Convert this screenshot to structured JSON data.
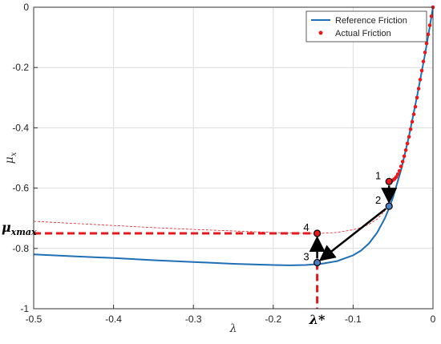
{
  "chart_data": {
    "type": "line",
    "xlim": [
      -0.5,
      0
    ],
    "ylim": [
      -1,
      0
    ],
    "x_ticks": [
      "-0.5",
      "-0.4",
      "-0.3",
      "-0.2",
      "-0.1",
      "0"
    ],
    "x_tick_values": [
      -0.5,
      -0.4,
      -0.3,
      -0.2,
      -0.1,
      0
    ],
    "y_ticks": [
      "0",
      "-0.2",
      "-0.4",
      "-0.6",
      "-0.8",
      "-1"
    ],
    "y_tick_values": [
      0,
      -0.2,
      -0.4,
      -0.6,
      -0.8,
      -1
    ],
    "xlabel": "λ",
    "ylabel": "μ",
    "ylabel_sub": "x",
    "grid": true,
    "legend_position": "top-right",
    "series": [
      {
        "name": "Reference Friction",
        "color": "#1f6fb5",
        "style": "solid",
        "x": [
          -0.5,
          -0.45,
          -0.4,
          -0.35,
          -0.3,
          -0.25,
          -0.2,
          -0.18,
          -0.16,
          -0.14,
          -0.12,
          -0.1,
          -0.09,
          -0.08,
          -0.07,
          -0.06,
          -0.055,
          -0.05,
          -0.04,
          -0.03,
          -0.02,
          -0.01,
          -0.005,
          0
        ],
        "y": [
          -0.82,
          -0.826,
          -0.832,
          -0.839,
          -0.845,
          -0.851,
          -0.855,
          -0.856,
          -0.855,
          -0.851,
          -0.842,
          -0.823,
          -0.807,
          -0.783,
          -0.748,
          -0.699,
          -0.667,
          -0.63,
          -0.54,
          -0.427,
          -0.296,
          -0.157,
          -0.08,
          0
        ]
      },
      {
        "name": "Actual Friction",
        "color": "#e41a1c",
        "style": "dots",
        "x": [
          0,
          -0.002,
          -0.004,
          -0.006,
          -0.008,
          -0.01,
          -0.012,
          -0.014,
          -0.016,
          -0.018,
          -0.02,
          -0.022,
          -0.024,
          -0.026,
          -0.028,
          -0.03,
          -0.032,
          -0.034,
          -0.036,
          -0.038,
          -0.04,
          -0.042,
          -0.044,
          -0.046,
          -0.048,
          -0.05,
          -0.052,
          -0.054,
          -0.055
        ],
        "y": [
          0,
          -0.03,
          -0.06,
          -0.09,
          -0.12,
          -0.15,
          -0.18,
          -0.21,
          -0.24,
          -0.27,
          -0.3,
          -0.33,
          -0.355,
          -0.38,
          -0.405,
          -0.43,
          -0.452,
          -0.474,
          -0.494,
          -0.512,
          -0.528,
          -0.543,
          -0.554,
          -0.563,
          -0.569,
          -0.573,
          -0.576,
          -0.578,
          -0.58
        ]
      },
      {
        "name": "",
        "color": "#e41a1c",
        "style": "thin-dashed",
        "x": [
          -0.5,
          -0.45,
          -0.4,
          -0.35,
          -0.3,
          -0.25,
          -0.2,
          -0.18,
          -0.16,
          -0.14,
          -0.12,
          -0.1,
          -0.09,
          -0.08,
          -0.07,
          -0.06
        ],
        "y": [
          -0.71,
          -0.717,
          -0.724,
          -0.731,
          -0.737,
          -0.742,
          -0.747,
          -0.749,
          -0.75,
          -0.75,
          -0.747,
          -0.738,
          -0.731,
          -0.72,
          -0.703,
          -0.675
        ]
      }
    ],
    "points": [
      {
        "label": "1",
        "x": -0.055,
        "y": -0.578,
        "fill": "#e41a1c"
      },
      {
        "label": "2",
        "x": -0.055,
        "y": -0.66,
        "fill": "#4c7ec4"
      },
      {
        "label": "3",
        "x": -0.145,
        "y": -0.847,
        "fill": "#4c7ec4"
      },
      {
        "label": "4",
        "x": -0.145,
        "y": -0.75,
        "fill": "#e41a1c"
      }
    ],
    "annotations": {
      "mu_max_label": "μ",
      "mu_max_sub": "xmax",
      "mu_max_y": -0.75,
      "lambda_star_label": "λ*",
      "lambda_star_x": -0.145
    },
    "legend": [
      {
        "label": "Reference Friction",
        "color": "#1f6fb5",
        "style": "line"
      },
      {
        "label": "Actual Friction",
        "color": "#e41a1c",
        "style": "dot"
      }
    ]
  }
}
